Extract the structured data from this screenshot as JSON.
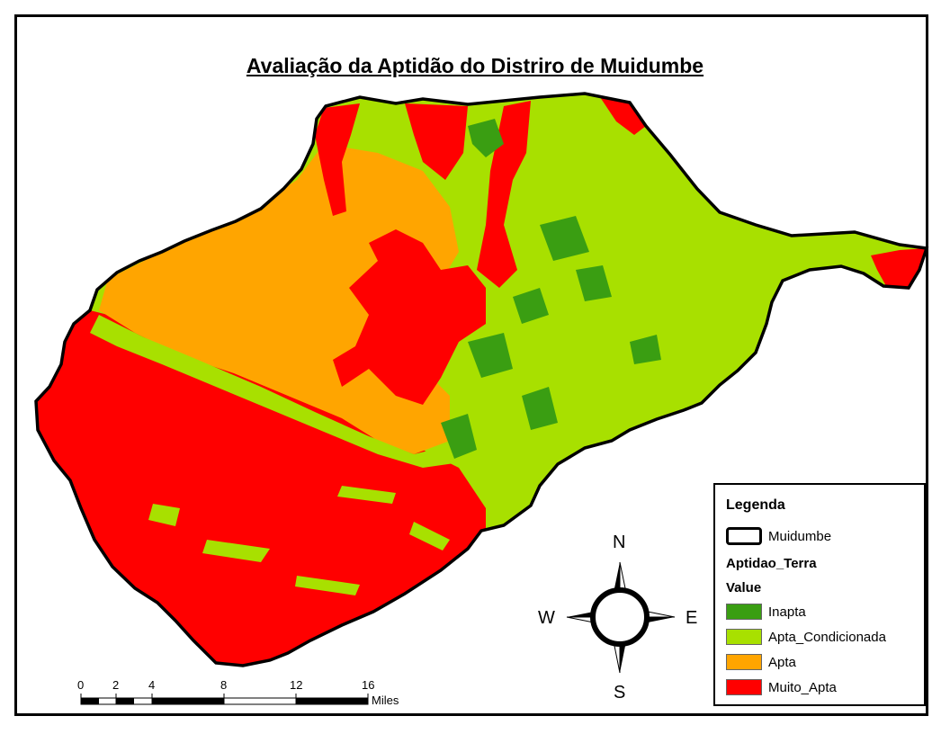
{
  "title": "Avaliação da Aptidão do Distriro de Muidumbe",
  "legend": {
    "title": "Legenda",
    "boundary_label": "Muidumbe",
    "layer_name": "Aptidao_Terra",
    "field_name": "Value",
    "classes": [
      {
        "label": "Inapta",
        "color": "#3a9e12"
      },
      {
        "label": "Apta_Condicionada",
        "color": "#a8e000"
      },
      {
        "label": "Apta",
        "color": "#ffa500"
      },
      {
        "label": "Muito_Apta",
        "color": "#ff0000"
      }
    ]
  },
  "compass": {
    "n": "N",
    "s": "S",
    "e": "E",
    "w": "W"
  },
  "scale_bar": {
    "ticks": [
      "0",
      "2",
      "4",
      "8",
      "12",
      "16"
    ],
    "unit": "Miles"
  }
}
